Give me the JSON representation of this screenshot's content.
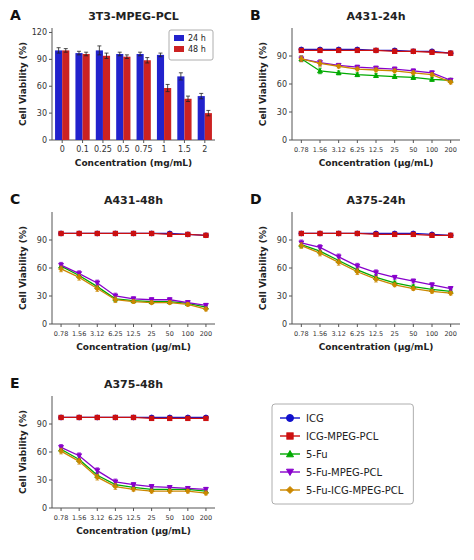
{
  "chart_data": [
    {
      "type": "bar",
      "panel_label": "A",
      "title": "3T3-MPEG-PCL",
      "x_label": "Concentration (mg/mL)",
      "y_label": "Cell Viability (%)",
      "categories": [
        "0",
        "0.1",
        "0.25",
        "0.5",
        "0.75",
        "1",
        "1.5",
        "2"
      ],
      "series": [
        {
          "name": "24 h",
          "color": "#2222cc",
          "values": [
            100,
            97,
            100,
            96,
            96,
            95,
            71,
            49
          ],
          "errors": [
            3,
            2,
            5,
            2,
            2,
            2,
            4,
            3
          ]
        },
        {
          "name": "48 h",
          "color": "#cc2222",
          "values": [
            100,
            96,
            94,
            93,
            89,
            58,
            46,
            30
          ],
          "errors": [
            2,
            2,
            3,
            2,
            3,
            4,
            3,
            3
          ]
        }
      ],
      "ylim": [
        0,
        125
      ],
      "yticks": [
        0,
        30,
        60,
        90,
        120
      ],
      "legend": "upper right"
    },
    {
      "type": "line",
      "panel_label": "B",
      "title": "A431-24h",
      "x_label": "Concentration (μg/mL)",
      "y_label": "Cell Viability (%)",
      "categories": [
        "0.78",
        "1.56",
        "3.12",
        "6.25",
        "12.5",
        "25",
        "50",
        "100",
        "200"
      ],
      "series": [
        {
          "name": "ICG",
          "color": "#1010cc",
          "marker": "circle",
          "values": [
            97,
            97,
            97,
            97,
            96,
            96,
            95,
            95,
            93
          ],
          "errors": [
            2,
            2,
            2,
            2,
            2,
            2,
            2,
            2,
            2
          ]
        },
        {
          "name": "ICG-MPEG-PCL",
          "color": "#cc1010",
          "marker": "square",
          "values": [
            96,
            96,
            96,
            96,
            96,
            95,
            95,
            94,
            93
          ],
          "errors": [
            2,
            2,
            2,
            2,
            2,
            2,
            2,
            2,
            2
          ]
        },
        {
          "name": "5-Fu",
          "color": "#00aa00",
          "marker": "triangle-up",
          "values": [
            87,
            74,
            72,
            70,
            69,
            68,
            67,
            65,
            64
          ],
          "errors": [
            3,
            3,
            2,
            2,
            2,
            2,
            2,
            2,
            2
          ]
        },
        {
          "name": "5-Fu-MPEG-PCL",
          "color": "#8800cc",
          "marker": "triangle-down",
          "values": [
            87,
            83,
            80,
            78,
            77,
            76,
            74,
            72,
            64
          ],
          "errors": [
            3,
            3,
            2,
            2,
            2,
            2,
            2,
            2,
            2
          ]
        },
        {
          "name": "5-Fu-ICG-MPEG-PCL",
          "color": "#cc8800",
          "marker": "diamond",
          "values": [
            87,
            82,
            79,
            76,
            75,
            74,
            72,
            70,
            62
          ],
          "errors": [
            3,
            3,
            2,
            2,
            2,
            2,
            2,
            2,
            2
          ]
        }
      ],
      "ylim": [
        0,
        120
      ],
      "yticks": [
        0,
        30,
        60,
        90
      ]
    },
    {
      "type": "line",
      "panel_label": "C",
      "title": "A431-48h",
      "x_label": "Concentration (μg/mL)",
      "y_label": "Cell Viability (%)",
      "categories": [
        "0.78",
        "1.56",
        "3.12",
        "6.25",
        "12.5",
        "25",
        "50",
        "100",
        "200"
      ],
      "series": [
        {
          "color": "#1010cc",
          "marker": "circle",
          "values": [
            97,
            97,
            97,
            97,
            97,
            97,
            97,
            96,
            95
          ],
          "errors": [
            2,
            2,
            2,
            2,
            2,
            2,
            2,
            2,
            2
          ]
        },
        {
          "color": "#cc1010",
          "marker": "square",
          "values": [
            97,
            97,
            97,
            97,
            97,
            97,
            96,
            96,
            95
          ],
          "errors": [
            2,
            2,
            2,
            2,
            2,
            2,
            2,
            2,
            2
          ]
        },
        {
          "color": "#00aa00",
          "marker": "triangle-up",
          "values": [
            62,
            52,
            40,
            27,
            25,
            24,
            24,
            22,
            18
          ],
          "errors": [
            3,
            3,
            3,
            3,
            2,
            2,
            2,
            2,
            2
          ]
        },
        {
          "color": "#8800cc",
          "marker": "triangle-down",
          "values": [
            63,
            54,
            44,
            30,
            27,
            26,
            26,
            23,
            20
          ],
          "errors": [
            3,
            3,
            3,
            3,
            2,
            2,
            2,
            2,
            2
          ]
        },
        {
          "color": "#cc8800",
          "marker": "diamond",
          "values": [
            59,
            50,
            38,
            26,
            24,
            23,
            23,
            21,
            16
          ],
          "errors": [
            3,
            3,
            3,
            3,
            2,
            2,
            2,
            2,
            2
          ]
        }
      ],
      "ylim": [
        0,
        120
      ],
      "yticks": [
        0,
        30,
        60,
        90
      ]
    },
    {
      "type": "line",
      "panel_label": "D",
      "title": "A375-24h",
      "x_label": "Concentration (μg/mL)",
      "y_label": "Cell Viability (%)",
      "categories": [
        "0.78",
        "1.56",
        "3.12",
        "6.25",
        "12.5",
        "25",
        "50",
        "100",
        "200"
      ],
      "series": [
        {
          "color": "#1010cc",
          "marker": "circle",
          "values": [
            97,
            97,
            97,
            97,
            97,
            97,
            97,
            96,
            95
          ],
          "errors": [
            2,
            2,
            2,
            2,
            2,
            2,
            2,
            2,
            2
          ]
        },
        {
          "color": "#cc1010",
          "marker": "square",
          "values": [
            97,
            97,
            97,
            97,
            96,
            96,
            96,
            95,
            95
          ],
          "errors": [
            2,
            2,
            2,
            2,
            2,
            2,
            2,
            2,
            2
          ]
        },
        {
          "color": "#00aa00",
          "marker": "triangle-up",
          "values": [
            85,
            78,
            68,
            58,
            50,
            44,
            40,
            37,
            35
          ],
          "errors": [
            3,
            3,
            3,
            3,
            3,
            2,
            2,
            2,
            2
          ]
        },
        {
          "color": "#8800cc",
          "marker": "triangle-down",
          "values": [
            87,
            82,
            72,
            62,
            55,
            50,
            46,
            42,
            38
          ],
          "errors": [
            3,
            3,
            3,
            3,
            3,
            2,
            2,
            2,
            2
          ]
        },
        {
          "color": "#cc8800",
          "marker": "diamond",
          "values": [
            84,
            76,
            66,
            56,
            48,
            42,
            38,
            35,
            33
          ],
          "errors": [
            3,
            3,
            3,
            3,
            3,
            2,
            2,
            2,
            2
          ]
        }
      ],
      "ylim": [
        0,
        120
      ],
      "yticks": [
        0,
        30,
        60,
        90
      ]
    },
    {
      "type": "line",
      "panel_label": "E",
      "title": "A375-48h",
      "x_label": "Concentration (μg/mL)",
      "y_label": "Cell Viability (%)",
      "categories": [
        "0.78",
        "1.56",
        "3.12",
        "6.25",
        "12.5",
        "25",
        "50",
        "100",
        "200"
      ],
      "series": [
        {
          "color": "#1010cc",
          "marker": "circle",
          "values": [
            97,
            97,
            97,
            97,
            97,
            97,
            97,
            97,
            97
          ],
          "errors": [
            2,
            2,
            2,
            2,
            2,
            2,
            2,
            2,
            2
          ]
        },
        {
          "color": "#cc1010",
          "marker": "square",
          "values": [
            97,
            97,
            97,
            97,
            97,
            96,
            96,
            96,
            96
          ],
          "errors": [
            2,
            2,
            2,
            2,
            2,
            2,
            2,
            2,
            2
          ]
        },
        {
          "color": "#00aa00",
          "marker": "triangle-up",
          "values": [
            63,
            52,
            35,
            25,
            22,
            20,
            20,
            20,
            18
          ],
          "errors": [
            3,
            3,
            3,
            3,
            2,
            2,
            2,
            2,
            2
          ]
        },
        {
          "color": "#8800cc",
          "marker": "triangle-down",
          "values": [
            65,
            56,
            40,
            28,
            25,
            23,
            22,
            21,
            20
          ],
          "errors": [
            3,
            3,
            3,
            3,
            2,
            2,
            2,
            2,
            2
          ]
        },
        {
          "color": "#cc8800",
          "marker": "diamond",
          "values": [
            61,
            50,
            33,
            23,
            20,
            18,
            18,
            18,
            16
          ],
          "errors": [
            3,
            3,
            3,
            3,
            2,
            2,
            2,
            2,
            2
          ]
        }
      ],
      "ylim": [
        0,
        120
      ],
      "yticks": [
        0,
        30,
        60,
        90
      ]
    }
  ]
}
